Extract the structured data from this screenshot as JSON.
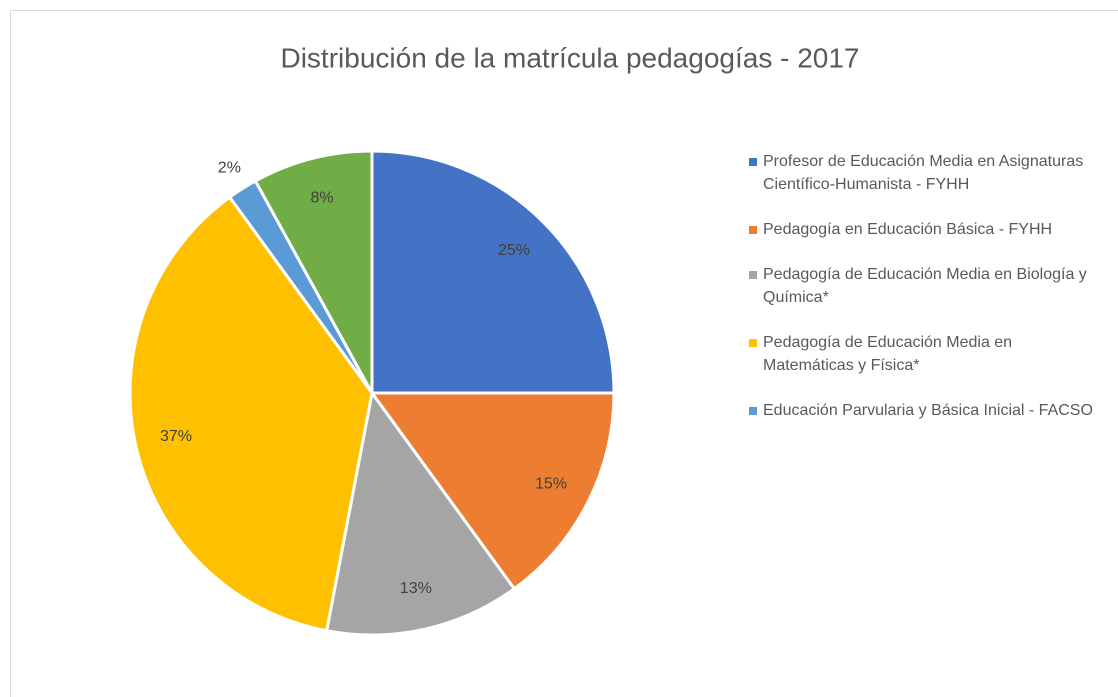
{
  "chart_data": {
    "type": "pie",
    "title": "Distribución de la matrícula pedagogías - 2017",
    "categories": [
      "Profesor de Educación Media en Asignaturas Científico-Humanista - FYHH",
      "Pedagogía en Educación Básica - FYHH",
      "Pedagogía de Educación Media en Biología y Química*",
      "Pedagogía de Educación Media en Matemáticas y Física*",
      "Educación Parvularia y Básica Inicial - FACSO",
      null
    ],
    "values": [
      25,
      15,
      13,
      37,
      2,
      8
    ],
    "value_labels": [
      "25%",
      "15%",
      "13%",
      "37%",
      "2%",
      "8%"
    ],
    "colors": [
      "#4472c4",
      "#ed7d31",
      "#a5a5a5",
      "#ffc000",
      "#5b9bd5",
      "#70ad47"
    ]
  }
}
